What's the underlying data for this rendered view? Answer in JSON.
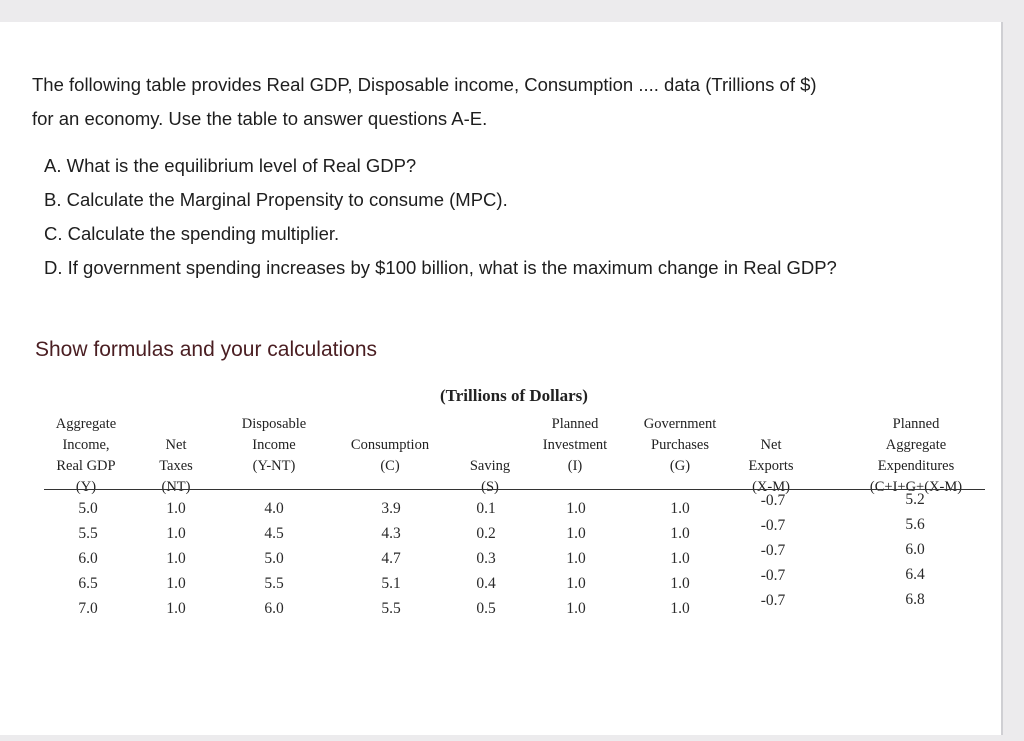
{
  "intro": {
    "line1": "The following table provides Real GDP, Disposable income, Consumption .... data (Trillions of $)",
    "line2": "for an economy. Use the table to answer questions A-E."
  },
  "questions": [
    "A. What is the equilibrium level of Real GDP?",
    "B. Calculate the Marginal Propensity to consume (MPC).",
    "C. Calculate the spending multiplier.",
    "D. If government spending increases by $100 billion, what is the maximum change in Real GDP?"
  ],
  "instruction": "Show formulas and your calculations",
  "table": {
    "title": "(Trillions of Dollars)",
    "headers": [
      [
        "Aggregate",
        "Income,",
        "Real GDP",
        "(Y)"
      ],
      [
        "Net",
        "Taxes",
        "(NT)"
      ],
      [
        "Disposable",
        "Income",
        "(Y-NT)"
      ],
      [
        "Consumption",
        "(C)"
      ],
      [
        "Saving",
        "(S)"
      ],
      [
        "Planned",
        "Investment",
        "(I)"
      ],
      [
        "Government",
        "Purchases",
        "(G)"
      ],
      [
        "Net",
        "Exports",
        "(X-M)"
      ],
      [
        "Planned",
        "Aggregate",
        "Expenditures",
        "(C+I+G+(X-M)"
      ]
    ],
    "columns": [
      [
        "5.0",
        "5.5",
        "6.0",
        "6.5",
        "7.0"
      ],
      [
        "1.0",
        "1.0",
        "1.0",
        "1.0",
        "1.0"
      ],
      [
        "4.0",
        "4.5",
        "5.0",
        "5.5",
        "6.0"
      ],
      [
        "3.9",
        "4.3",
        "4.7",
        "5.1",
        "5.5"
      ],
      [
        "0.1",
        "0.2",
        "0.3",
        "0.4",
        "0.5"
      ],
      [
        "1.0",
        "1.0",
        "1.0",
        "1.0",
        "1.0"
      ],
      [
        "1.0",
        "1.0",
        "1.0",
        "1.0",
        "1.0"
      ],
      [
        "-0.7",
        "-0.7",
        "-0.7",
        "-0.7",
        "-0.7"
      ],
      [
        "5.2",
        "5.6",
        "6.0",
        "6.4",
        "6.8"
      ]
    ]
  }
}
